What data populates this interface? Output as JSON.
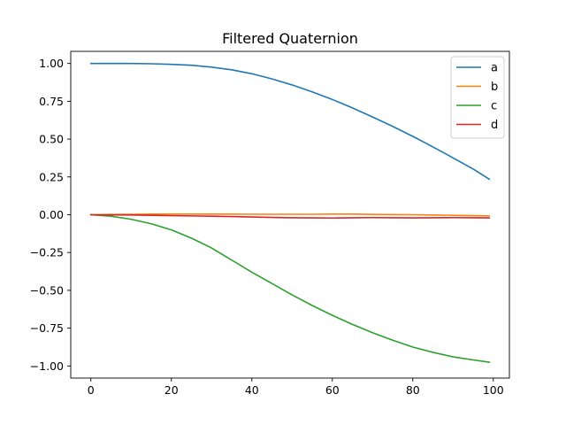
{
  "chart_data": {
    "type": "line",
    "title": "Filtered Quaternion",
    "xlabel": "",
    "ylabel": "",
    "xlim": [
      -5,
      104
    ],
    "ylim": [
      -1.08,
      1.08
    ],
    "xticks": [
      0,
      20,
      40,
      60,
      80,
      100
    ],
    "xtick_labels": [
      "0",
      "20",
      "40",
      "60",
      "80",
      "100"
    ],
    "yticks": [
      1.0,
      0.75,
      0.5,
      0.25,
      0.0,
      -0.25,
      -0.5,
      -0.75,
      -1.0
    ],
    "ytick_labels": [
      "1.00",
      "0.75",
      "0.50",
      "0.25",
      "0.00",
      "−0.25",
      "−0.50",
      "−0.75",
      "−1.00"
    ],
    "grid": false,
    "legend_position": "top-right",
    "x": [
      0,
      5,
      10,
      15,
      20,
      25,
      30,
      35,
      40,
      45,
      50,
      55,
      60,
      65,
      70,
      75,
      80,
      85,
      90,
      95,
      99
    ],
    "series": [
      {
        "name": "a",
        "color": "#1f77b4",
        "values": [
          1.0,
          1.0,
          1.0,
          0.998,
          0.994,
          0.988,
          0.976,
          0.958,
          0.932,
          0.898,
          0.858,
          0.812,
          0.762,
          0.706,
          0.646,
          0.584,
          0.518,
          0.448,
          0.376,
          0.302,
          0.235
        ]
      },
      {
        "name": "b",
        "color": "#ff7f0e",
        "values": [
          0.0,
          0.002,
          0.003,
          0.004,
          0.004,
          0.004,
          0.004,
          0.004,
          0.003,
          0.003,
          0.003,
          0.003,
          0.004,
          0.004,
          0.002,
          0.001,
          0.0,
          -0.002,
          -0.004,
          -0.006,
          -0.008
        ]
      },
      {
        "name": "c",
        "color": "#2ca02c",
        "values": [
          0.0,
          -0.01,
          -0.03,
          -0.06,
          -0.1,
          -0.155,
          -0.22,
          -0.3,
          -0.38,
          -0.455,
          -0.53,
          -0.6,
          -0.665,
          -0.725,
          -0.78,
          -0.83,
          -0.875,
          -0.91,
          -0.94,
          -0.96,
          -0.975
        ]
      },
      {
        "name": "d",
        "color": "#d62728",
        "values": [
          0.0,
          -0.001,
          -0.002,
          -0.004,
          -0.006,
          -0.008,
          -0.01,
          -0.012,
          -0.015,
          -0.018,
          -0.02,
          -0.021,
          -0.022,
          -0.02,
          -0.019,
          -0.02,
          -0.021,
          -0.02,
          -0.019,
          -0.02,
          -0.021
        ]
      }
    ]
  }
}
